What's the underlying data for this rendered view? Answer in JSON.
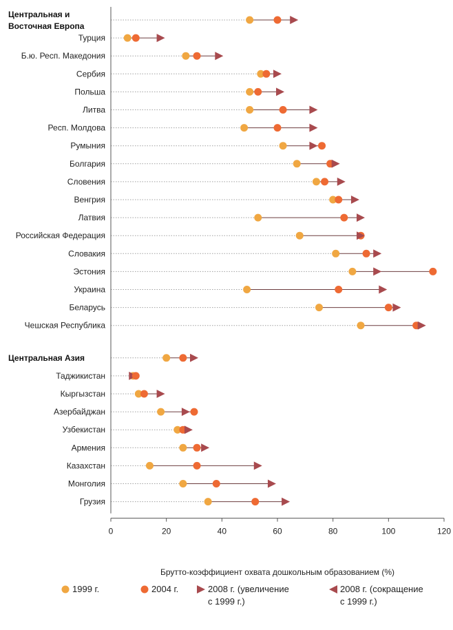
{
  "chart_data": {
    "type": "dot",
    "xlabel": "Брутто-коэффициент охвата дошкольным образованием (%)",
    "xlim": [
      0,
      120
    ],
    "xticks": [
      "0",
      "20",
      "40",
      "60",
      "80",
      "100",
      "120"
    ],
    "colors": {
      "y1999": "#f0a742",
      "y2004": "#ee6a33",
      "y2008": "#a84a4e",
      "grid": "#a0a0a0"
    },
    "groups": [
      {
        "name": "Центральная и Восточная Европа",
        "name_lines": [
          "Центральная и",
          "Восточная Европа"
        ],
        "v1999": 50,
        "v2004": 60,
        "v2008": 66,
        "rows": [
          {
            "label": "Турция",
            "v1999": 6,
            "v2004": 9,
            "v2008": 18
          },
          {
            "label": "Б.ю. Респ. Македония",
            "v1999": 27,
            "v2004": 31,
            "v2008": 39
          },
          {
            "label": "Сербия",
            "v1999": 54,
            "v2004": 56,
            "v2008": 60
          },
          {
            "label": "Польша",
            "v1999": 50,
            "v2004": 53,
            "v2008": 61
          },
          {
            "label": "Литва",
            "v1999": 50,
            "v2004": 62,
            "v2008": 73
          },
          {
            "label": "Респ. Молдова",
            "v1999": 48,
            "v2004": 60,
            "v2008": 73
          },
          {
            "label": "Румыния",
            "v1999": 62,
            "v2004": 76,
            "v2008": 73
          },
          {
            "label": "Болгария",
            "v1999": 67,
            "v2004": 79,
            "v2008": 81
          },
          {
            "label": "Словения",
            "v1999": 74,
            "v2004": 77,
            "v2008": 83
          },
          {
            "label": "Венгрия",
            "v1999": 80,
            "v2004": 82,
            "v2008": 88
          },
          {
            "label": "Латвия",
            "v1999": 53,
            "v2004": 84,
            "v2008": 90
          },
          {
            "label": "Российская Федерация",
            "v1999": 68,
            "v2004": 90,
            "v2008": 90
          },
          {
            "label": "Словакия",
            "v1999": 81,
            "v2004": 92,
            "v2008": 96
          },
          {
            "label": "Эстония",
            "v1999": 87,
            "v2004": 116,
            "v2008": 96
          },
          {
            "label": "Украина",
            "v1999": 49,
            "v2004": 82,
            "v2008": 98
          },
          {
            "label": "Беларусь",
            "v1999": 75,
            "v2004": 100,
            "v2008": 103
          },
          {
            "label": "Чешская Республика",
            "v1999": 90,
            "v2004": 110,
            "v2008": 112
          }
        ]
      },
      {
        "name": "Центральная Азия",
        "name_lines": [
          "Центральная Азия"
        ],
        "v1999": 20,
        "v2004": 26,
        "v2008": 30,
        "rows": [
          {
            "label": "Таджикистан",
            "v1999": 8,
            "v2004": 9,
            "v2008": 8
          },
          {
            "label": "Кыргызстан",
            "v1999": 10,
            "v2004": 12,
            "v2008": 18
          },
          {
            "label": "Азербайджан",
            "v1999": 18,
            "v2004": 30,
            "v2008": 27
          },
          {
            "label": "Узбекистан",
            "v1999": 24,
            "v2004": 26,
            "v2008": 28
          },
          {
            "label": "Армения",
            "v1999": 26,
            "v2004": 31,
            "v2008": 34
          },
          {
            "label": "Казахстан",
            "v1999": 14,
            "v2004": 31,
            "v2008": 53
          },
          {
            "label": "Монголия",
            "v1999": 26,
            "v2004": 38,
            "v2008": 58
          },
          {
            "label": "Грузия",
            "v1999": 35,
            "v2004": 52,
            "v2008": 63
          }
        ]
      }
    ],
    "legend": [
      {
        "key": "y1999",
        "label_lines": [
          "1999 г."
        ],
        "marker": "circle"
      },
      {
        "key": "y2004",
        "label_lines": [
          "2004 г."
        ],
        "marker": "circle"
      },
      {
        "key": "y2008",
        "label_lines": [
          "2008  г. (увеличение",
          "с 1999 г.)"
        ],
        "marker": "triangle-right"
      },
      {
        "key": "y2008",
        "label_lines": [
          "2008  г. (сокращение",
          "с 1999 г.)"
        ],
        "marker": "triangle-left"
      }
    ]
  }
}
